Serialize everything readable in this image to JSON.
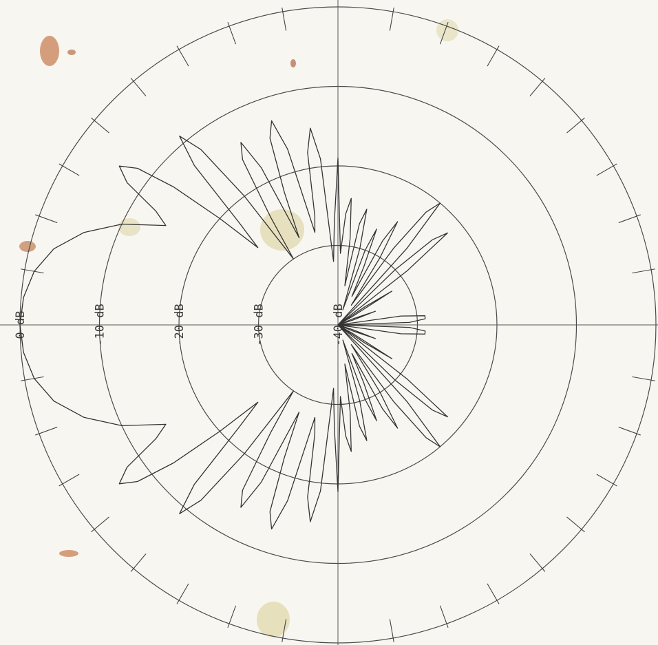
{
  "chart_data": {
    "type": "polar",
    "title": "",
    "radial_unit": "dB",
    "radial_range": [
      -40,
      0
    ],
    "rings": [
      0,
      -10,
      -20,
      -30,
      -40
    ],
    "ring_labels": [
      "0 dB",
      "-10 dB",
      "-20 dB",
      "-30 dB",
      "-40 dB"
    ],
    "angular_tick_step_deg": 10,
    "grid": true,
    "pattern": {
      "angles_deg": [
        180,
        175,
        170,
        165,
        160,
        155,
        150,
        148,
        146,
        144,
        142,
        140,
        138,
        136,
        134,
        132,
        130,
        128,
        126,
        124,
        122,
        120,
        118,
        116,
        114,
        112,
        110,
        108,
        106,
        104,
        102,
        100,
        98,
        96,
        94,
        92,
        90,
        88,
        86,
        84,
        82,
        80,
        78,
        76,
        74,
        72,
        70,
        68,
        66,
        64,
        62,
        60,
        58,
        56,
        54,
        52,
        50,
        48,
        46,
        44,
        42,
        40,
        38,
        36,
        34,
        32,
        30,
        28,
        26,
        24,
        22,
        20,
        18,
        16,
        14,
        12,
        10,
        8,
        6,
        4,
        2,
        0
      ],
      "gain_db": [
        0,
        -0.3,
        -1.2,
        -3,
        -6,
        -10,
        -15,
        -13,
        -8,
        -6,
        -8,
        -13,
        -20,
        -26,
        -22,
        -13,
        -9,
        -12,
        -20,
        -30,
        -24,
        -16,
        -14,
        -18,
        -28,
        -22,
        -15,
        -13,
        -17,
        -28,
        -26,
        -18,
        -15,
        -19,
        -32,
        -27,
        -19,
        -31,
        -26,
        -24,
        -29,
        -35,
        -27,
        -25,
        -30,
        -38,
        -30,
        -27,
        -32,
        -36,
        -28,
        -25,
        -30,
        -37,
        -28,
        -22,
        -20,
        -27,
        -40,
        -30,
        -24,
        -22,
        -29,
        -40,
        -36,
        -32,
        -38,
        -40,
        -40,
        -40,
        -38,
        -35,
        -38,
        -40,
        -40,
        -40,
        -40,
        -32,
        -29,
        -29,
        -31,
        -40
      ]
    }
  }
}
